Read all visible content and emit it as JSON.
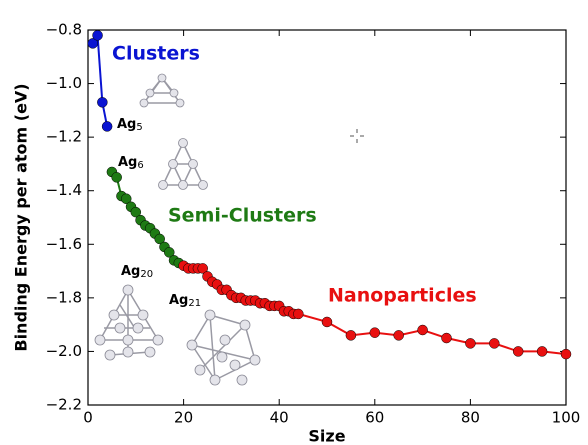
{
  "chart_data": {
    "type": "line",
    "x_label": "Size",
    "y_label": "Binding Energy per atom (eV)",
    "xlim": [
      0,
      100
    ],
    "xticks": [
      0,
      20,
      40,
      60,
      80,
      100
    ],
    "ylim": [
      -2.2,
      -0.8
    ],
    "yticks": [
      {
        "value": -2.2,
        "label": "−2.2"
      },
      {
        "value": -2.0,
        "label": "−2.0"
      },
      {
        "value": -1.8,
        "label": "−1.8"
      },
      {
        "value": -1.6,
        "label": "−1.6"
      },
      {
        "value": -1.4,
        "label": "−1.4"
      },
      {
        "value": -1.2,
        "label": "−1.2"
      },
      {
        "value": -1.0,
        "label": "−1.0"
      },
      {
        "value": -0.8,
        "label": "−0.8"
      }
    ],
    "series": [
      {
        "name": "Clusters",
        "color": "#0a14d2",
        "x": [
          1,
          2,
          3,
          4
        ],
        "values": [
          -0.85,
          -0.82,
          -1.07,
          -1.16
        ]
      },
      {
        "name": "Semi-Clusters",
        "color": "#1e7a14",
        "x": [
          5,
          6,
          7,
          8,
          9,
          10,
          11,
          12,
          13,
          14,
          15,
          16,
          17,
          18,
          19
        ],
        "values": [
          -1.33,
          -1.35,
          -1.42,
          -1.43,
          -1.46,
          -1.48,
          -1.51,
          -1.53,
          -1.54,
          -1.56,
          -1.58,
          -1.61,
          -1.63,
          -1.66,
          -1.67
        ]
      },
      {
        "name": "Nanoparticles",
        "color": "#e81010",
        "x": [
          20,
          21,
          22,
          23,
          24,
          25,
          26,
          27,
          28,
          29,
          30,
          31,
          32,
          33,
          34,
          35,
          36,
          37,
          38,
          39,
          40,
          41,
          42,
          43,
          44,
          50,
          55,
          60,
          65,
          70,
          75,
          80,
          85,
          90,
          95,
          100
        ],
        "values": [
          -1.68,
          -1.69,
          -1.69,
          -1.69,
          -1.69,
          -1.72,
          -1.74,
          -1.75,
          -1.77,
          -1.77,
          -1.79,
          -1.8,
          -1.8,
          -1.81,
          -1.81,
          -1.81,
          -1.82,
          -1.82,
          -1.83,
          -1.83,
          -1.83,
          -1.85,
          -1.85,
          -1.86,
          -1.86,
          -1.89,
          -1.94,
          -1.93,
          -1.94,
          -1.92,
          -1.95,
          -1.97,
          -1.97,
          -2.0,
          -2.0,
          -2.01
        ]
      }
    ],
    "annotations": [
      {
        "text": "Ag",
        "subscript": "5"
      },
      {
        "text": "Ag",
        "subscript": "6"
      },
      {
        "text": "Ag",
        "subscript": "20"
      },
      {
        "text": "Ag",
        "subscript": "21"
      }
    ]
  }
}
